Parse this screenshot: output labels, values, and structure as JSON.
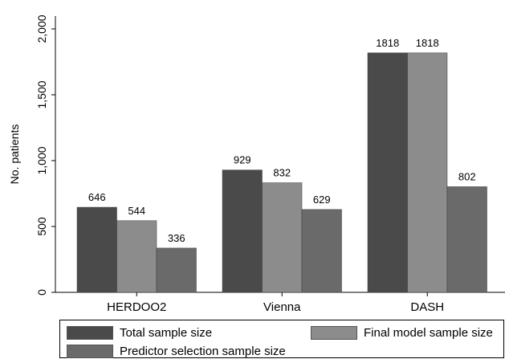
{
  "chart_data": {
    "type": "bar",
    "categories": [
      "HERDOO2",
      "Vienna",
      "DASH"
    ],
    "series": [
      {
        "name": "Total sample size",
        "values": [
          646,
          929,
          1818
        ],
        "color": "#4a4a4a"
      },
      {
        "name": "Final model sample size",
        "values": [
          544,
          832,
          1818
        ],
        "color": "#8c8c8c"
      },
      {
        "name": "Predictor selection sample size",
        "values": [
          336,
          629,
          802
        ],
        "color": "#6a6a6a"
      }
    ],
    "data_labels": [
      [
        "646",
        "929",
        "1818"
      ],
      [
        "544",
        "832",
        "1818"
      ],
      [
        "336",
        "629",
        "802"
      ]
    ],
    "title": "",
    "xlabel": "",
    "ylabel": "No. patients",
    "ylim": [
      0,
      2000
    ],
    "yticks": [
      0,
      500,
      1000,
      1500,
      2000
    ],
    "ytick_labels": [
      "0",
      "500",
      "1,000",
      "1,500",
      "2,000"
    ],
    "grid": false,
    "legend_position": "bottom"
  }
}
